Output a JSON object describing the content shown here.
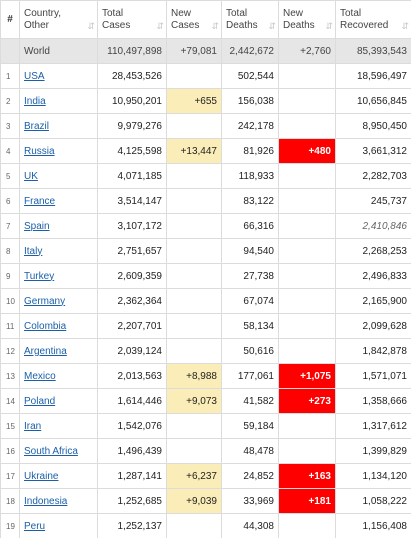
{
  "headers": {
    "index": "#",
    "country": [
      "Country,",
      "Other"
    ],
    "total_cases": [
      "Total",
      "Cases"
    ],
    "new_cases": [
      "New",
      "Cases"
    ],
    "total_deaths": [
      "Total",
      "Deaths"
    ],
    "new_deaths": [
      "New",
      "Deaths"
    ],
    "total_recovered": [
      "Total",
      "Recovered"
    ]
  },
  "sort_icon": "⇵",
  "world": {
    "label": "World",
    "total_cases": "110,497,898",
    "new_cases": "+79,081",
    "total_deaths": "2,442,672",
    "new_deaths": "+2,760",
    "total_recovered": "85,393,543"
  },
  "rows": [
    {
      "index": "1",
      "country": "USA",
      "total_cases": "28,453,526",
      "new_cases": "",
      "total_deaths": "502,544",
      "new_deaths": "",
      "total_recovered": "18,596,497"
    },
    {
      "index": "2",
      "country": "India",
      "total_cases": "10,950,201",
      "new_cases": "+655",
      "total_deaths": "156,038",
      "new_deaths": "",
      "total_recovered": "10,656,845"
    },
    {
      "index": "3",
      "country": "Brazil",
      "total_cases": "9,979,276",
      "new_cases": "",
      "total_deaths": "242,178",
      "new_deaths": "",
      "total_recovered": "8,950,450"
    },
    {
      "index": "4",
      "country": "Russia",
      "total_cases": "4,125,598",
      "new_cases": "+13,447",
      "total_deaths": "81,926",
      "new_deaths": "+480",
      "total_recovered": "3,661,312"
    },
    {
      "index": "5",
      "country": "UK",
      "total_cases": "4,071,185",
      "new_cases": "",
      "total_deaths": "118,933",
      "new_deaths": "",
      "total_recovered": "2,282,703"
    },
    {
      "index": "6",
      "country": "France",
      "total_cases": "3,514,147",
      "new_cases": "",
      "total_deaths": "83,122",
      "new_deaths": "",
      "total_recovered": "245,737"
    },
    {
      "index": "7",
      "country": "Spain",
      "total_cases": "3,107,172",
      "new_cases": "",
      "total_deaths": "66,316",
      "new_deaths": "",
      "total_recovered": "2,410,846"
    },
    {
      "index": "8",
      "country": "Italy",
      "total_cases": "2,751,657",
      "new_cases": "",
      "total_deaths": "94,540",
      "new_deaths": "",
      "total_recovered": "2,268,253"
    },
    {
      "index": "9",
      "country": "Turkey",
      "total_cases": "2,609,359",
      "new_cases": "",
      "total_deaths": "27,738",
      "new_deaths": "",
      "total_recovered": "2,496,833"
    },
    {
      "index": "10",
      "country": "Germany",
      "total_cases": "2,362,364",
      "new_cases": "",
      "total_deaths": "67,074",
      "new_deaths": "",
      "total_recovered": "2,165,900"
    },
    {
      "index": "11",
      "country": "Colombia",
      "total_cases": "2,207,701",
      "new_cases": "",
      "total_deaths": "58,134",
      "new_deaths": "",
      "total_recovered": "2,099,628"
    },
    {
      "index": "12",
      "country": "Argentina",
      "total_cases": "2,039,124",
      "new_cases": "",
      "total_deaths": "50,616",
      "new_deaths": "",
      "total_recovered": "1,842,878"
    },
    {
      "index": "13",
      "country": "Mexico",
      "total_cases": "2,013,563",
      "new_cases": "+8,988",
      "total_deaths": "177,061",
      "new_deaths": "+1,075",
      "total_recovered": "1,571,071"
    },
    {
      "index": "14",
      "country": "Poland",
      "total_cases": "1,614,446",
      "new_cases": "+9,073",
      "total_deaths": "41,582",
      "new_deaths": "+273",
      "total_recovered": "1,358,666"
    },
    {
      "index": "15",
      "country": "Iran",
      "total_cases": "1,542,076",
      "new_cases": "",
      "total_deaths": "59,184",
      "new_deaths": "",
      "total_recovered": "1,317,612"
    },
    {
      "index": "16",
      "country": "South Africa",
      "total_cases": "1,496,439",
      "new_cases": "",
      "total_deaths": "48,478",
      "new_deaths": "",
      "total_recovered": "1,399,829"
    },
    {
      "index": "17",
      "country": "Ukraine",
      "total_cases": "1,287,141",
      "new_cases": "+6,237",
      "total_deaths": "24,852",
      "new_deaths": "+163",
      "total_recovered": "1,134,120"
    },
    {
      "index": "18",
      "country": "Indonesia",
      "total_cases": "1,252,685",
      "new_cases": "+9,039",
      "total_deaths": "33,969",
      "new_deaths": "+181",
      "total_recovered": "1,058,222"
    },
    {
      "index": "19",
      "country": "Peru",
      "total_cases": "1,252,137",
      "new_cases": "",
      "total_deaths": "44,308",
      "new_deaths": "",
      "total_recovered": "1,156,408"
    }
  ],
  "colors": {
    "link": "#1a5fa8",
    "world_row_bg": "#e6e6e6",
    "new_cases_highlight": "#fbedb8",
    "new_deaths_highlight": "#ff0000"
  }
}
